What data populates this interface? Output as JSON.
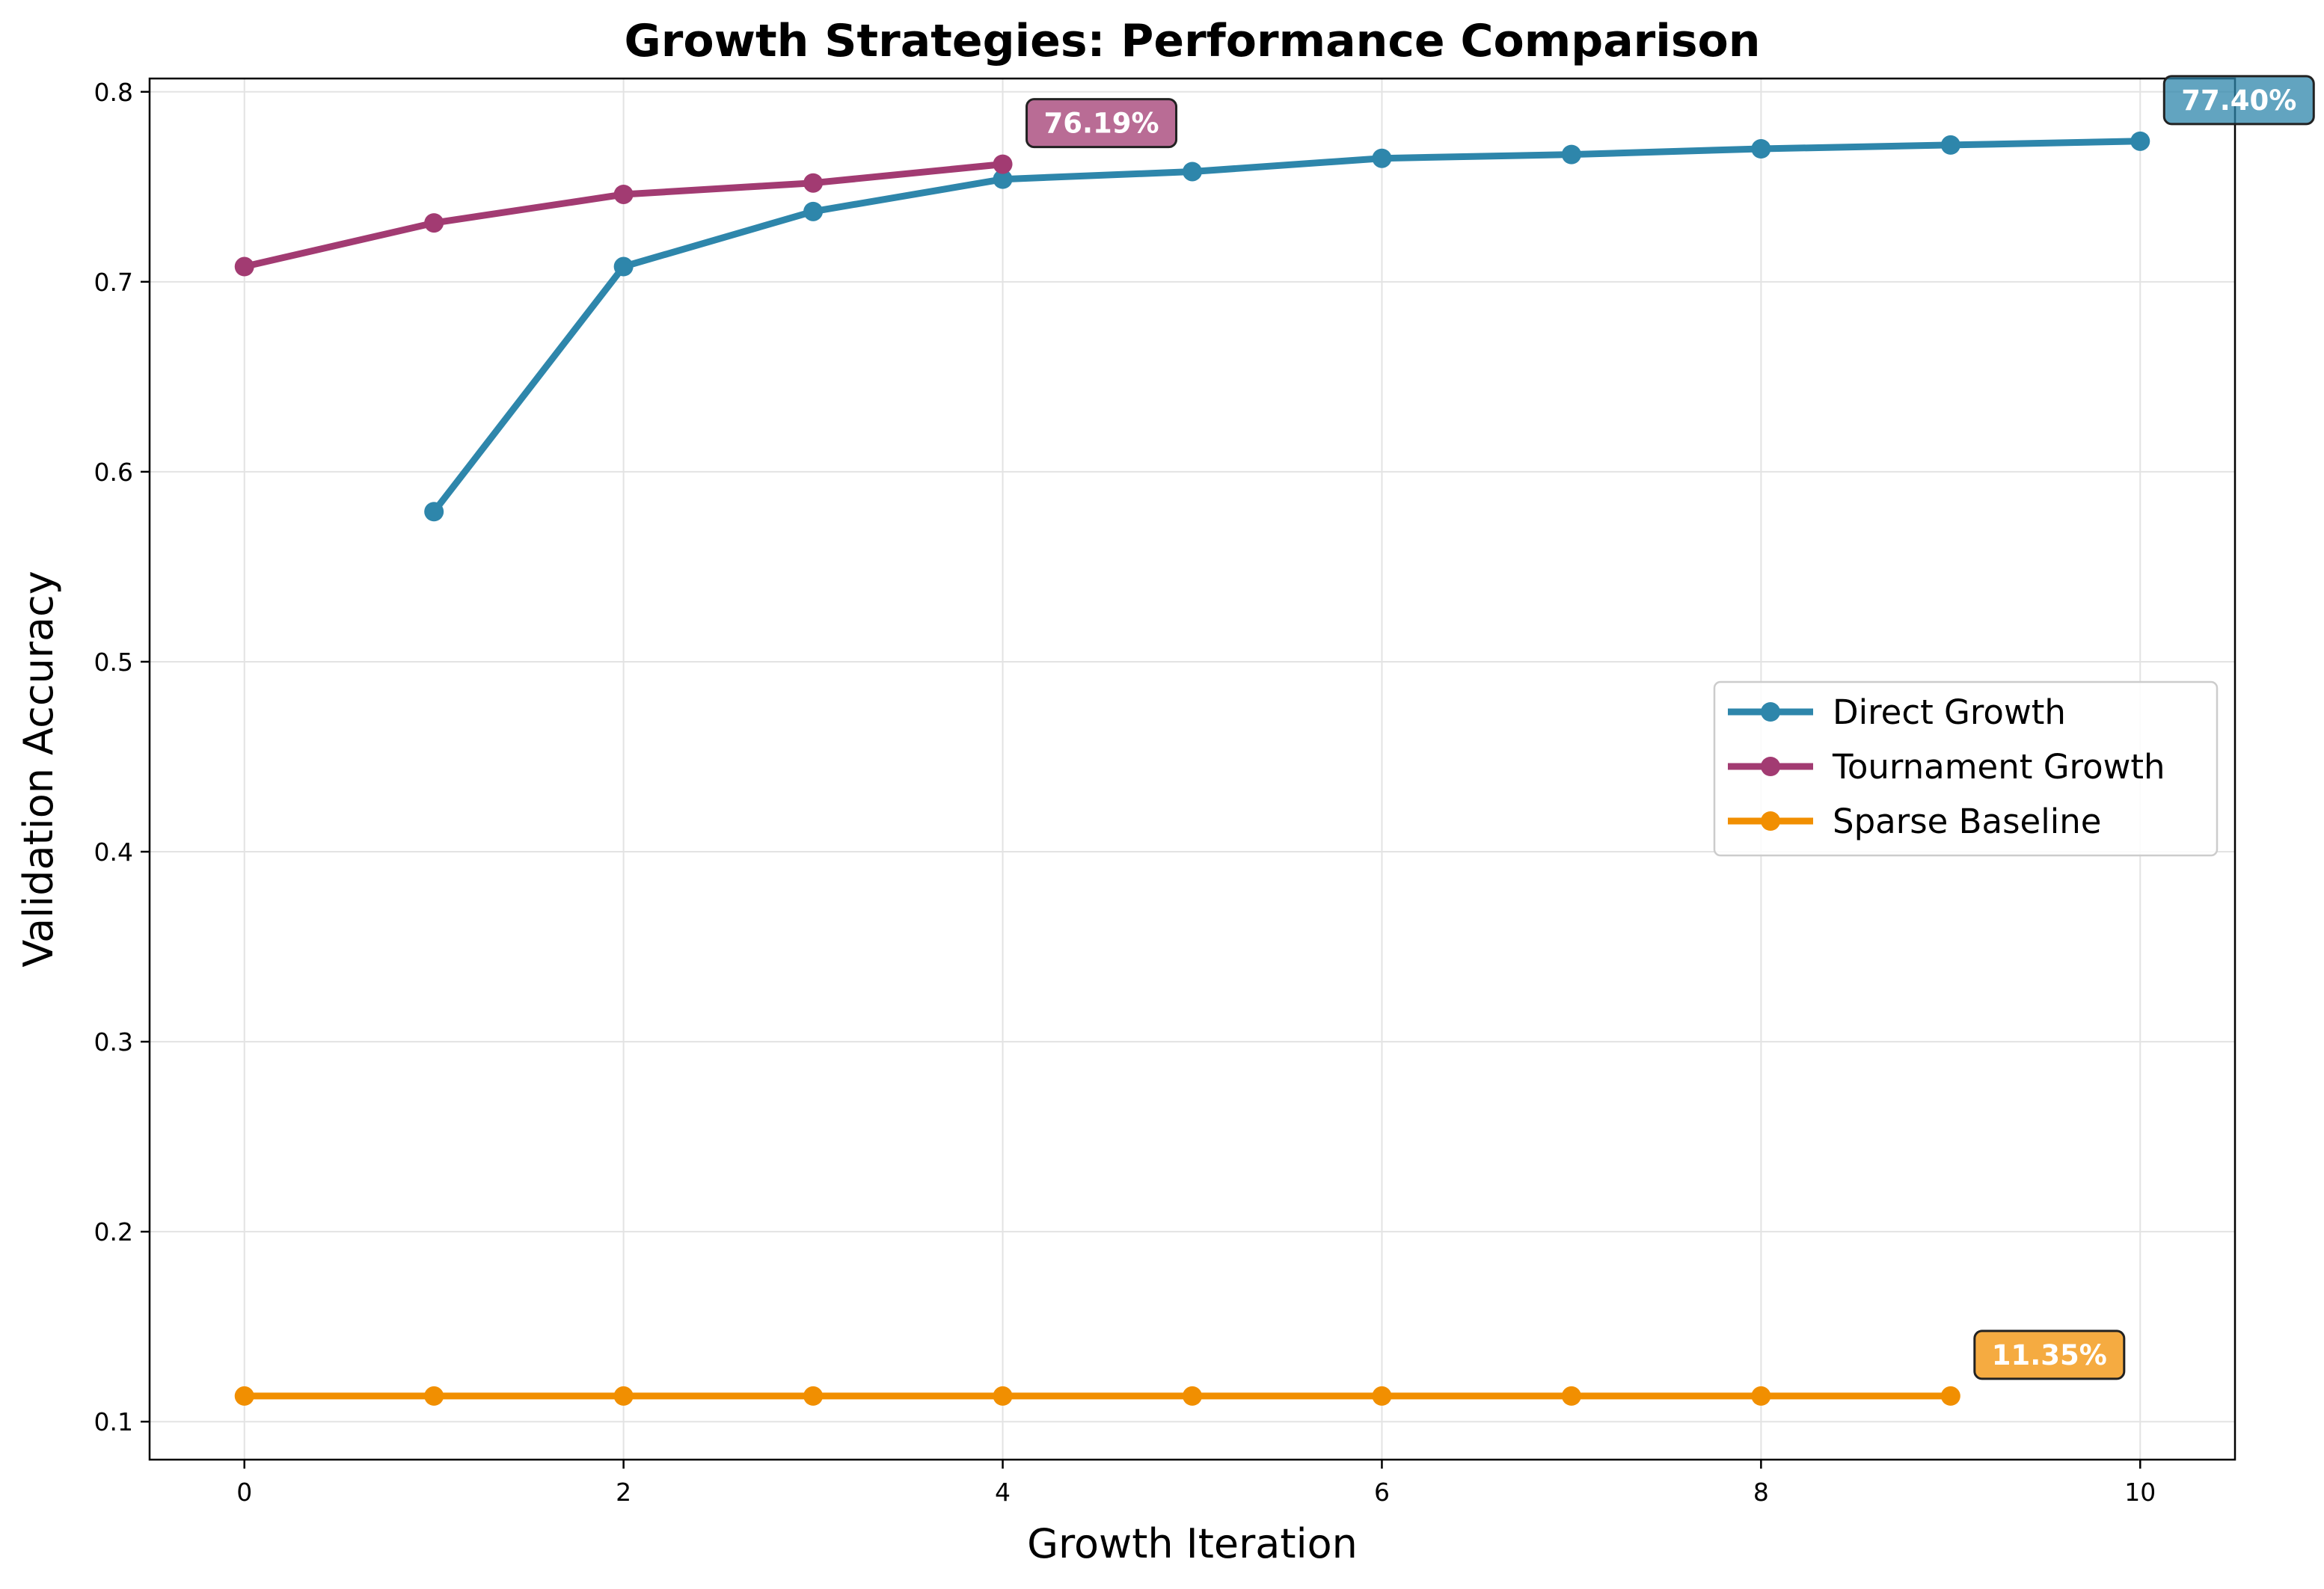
{
  "chart_data": {
    "type": "line",
    "title": "Growth Strategies: Performance Comparison",
    "xlabel": "Growth Iteration",
    "ylabel": "Validation Accuracy",
    "xlim": [
      -0.5,
      10.5
    ],
    "ylim": [
      0.08,
      0.807
    ],
    "xticks": [
      0,
      2,
      4,
      6,
      8,
      10
    ],
    "yticks": [
      0.1,
      0.2,
      0.3,
      0.4,
      0.5,
      0.6,
      0.7,
      0.8
    ],
    "grid": true,
    "legend_position": "center-right",
    "series": [
      {
        "name": "Direct Growth",
        "color": "#2E86AB",
        "x": [
          1,
          2,
          3,
          4,
          5,
          6,
          7,
          8,
          9,
          10
        ],
        "y": [
          0.579,
          0.708,
          0.737,
          0.754,
          0.758,
          0.765,
          0.767,
          0.77,
          0.772,
          0.774
        ]
      },
      {
        "name": "Tournament Growth",
        "color": "#A23B72",
        "x": [
          0,
          1,
          2,
          3,
          4
        ],
        "y": [
          0.708,
          0.731,
          0.746,
          0.752,
          0.7619
        ]
      },
      {
        "name": "Sparse Baseline",
        "color": "#F18F01",
        "x": [
          0,
          1,
          2,
          3,
          4,
          5,
          6,
          7,
          8,
          9
        ],
        "y": [
          0.1135,
          0.1135,
          0.1135,
          0.1135,
          0.1135,
          0.1135,
          0.1135,
          0.1135,
          0.1135,
          0.1135
        ]
      }
    ],
    "annotations": [
      {
        "text": "76.19%",
        "series": 1,
        "x": 4,
        "y": 0.7619
      },
      {
        "text": "77.40%",
        "series": 0,
        "x": 10,
        "y": 0.774
      },
      {
        "text": "11.35%",
        "series": 2,
        "x": 9,
        "y": 0.1135
      }
    ]
  }
}
